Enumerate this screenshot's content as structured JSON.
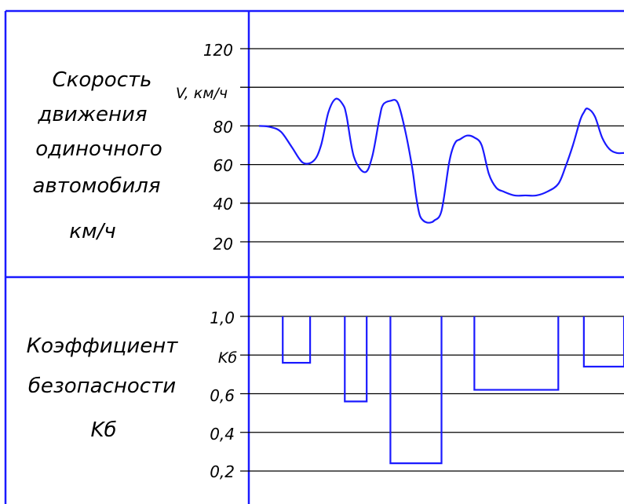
{
  "colors": {
    "frame": "#1a1aff",
    "line": "#1a1aff",
    "grid": "#000000",
    "text": "#000000"
  },
  "chart_data": [
    {
      "type": "line",
      "title_lines": [
        "Скорость",
        "движения",
        "одиночного",
        "автомобиля",
        "км/ч"
      ],
      "ylabel": "V, км/ч",
      "yticks": [
        "120",
        "",
        "80",
        "60",
        "40",
        "20"
      ],
      "ylim": [
        20,
        120
      ],
      "x_range": [
        0,
        100
      ],
      "grid": true,
      "series": [
        {
          "x": [
            0,
            3,
            6,
            9,
            12,
            15,
            17,
            19,
            21,
            23,
            24,
            26,
            29,
            31,
            33,
            34,
            36,
            38,
            40,
            42,
            43,
            44,
            45,
            46,
            47,
            48,
            50,
            52,
            53,
            54,
            55,
            57,
            59,
            61,
            63,
            65,
            67,
            70,
            73,
            76,
            79,
            82,
            84,
            86,
            88,
            89,
            90,
            92,
            94,
            96,
            98,
            100
          ],
          "y": [
            80,
            79.5,
            77,
            69,
            61,
            62,
            70,
            87,
            94,
            91,
            85,
            64,
            56,
            64,
            84,
            91,
            93,
            92,
            78,
            58,
            44,
            34,
            31,
            30,
            30,
            31,
            36,
            60,
            68,
            72,
            73,
            75,
            74,
            70,
            55,
            48,
            46,
            44,
            44,
            44,
            46,
            50,
            59,
            70,
            83,
            87,
            89,
            85,
            74,
            68,
            66,
            66
          ]
        }
      ]
    },
    {
      "type": "bar",
      "title_lines": [
        "Коэффициент",
        "безопасности",
        "Kб"
      ],
      "ylabel": "Kб",
      "yticks": [
        "1,0",
        "",
        "0,6",
        "0,4",
        "0,2"
      ],
      "ylim": [
        0.2,
        1.0
      ],
      "x_range": [
        0,
        100
      ],
      "baseline": 1.0,
      "grid": true,
      "intervals": [
        {
          "x0": 6.5,
          "x1": 14,
          "value": 0.76
        },
        {
          "x0": 23.5,
          "x1": 29.5,
          "value": 0.56
        },
        {
          "x0": 36,
          "x1": 50,
          "value": 0.24
        },
        {
          "x0": 59,
          "x1": 82,
          "value": 0.62
        },
        {
          "x0": 89,
          "x1": 100,
          "value": 0.74
        }
      ]
    }
  ]
}
